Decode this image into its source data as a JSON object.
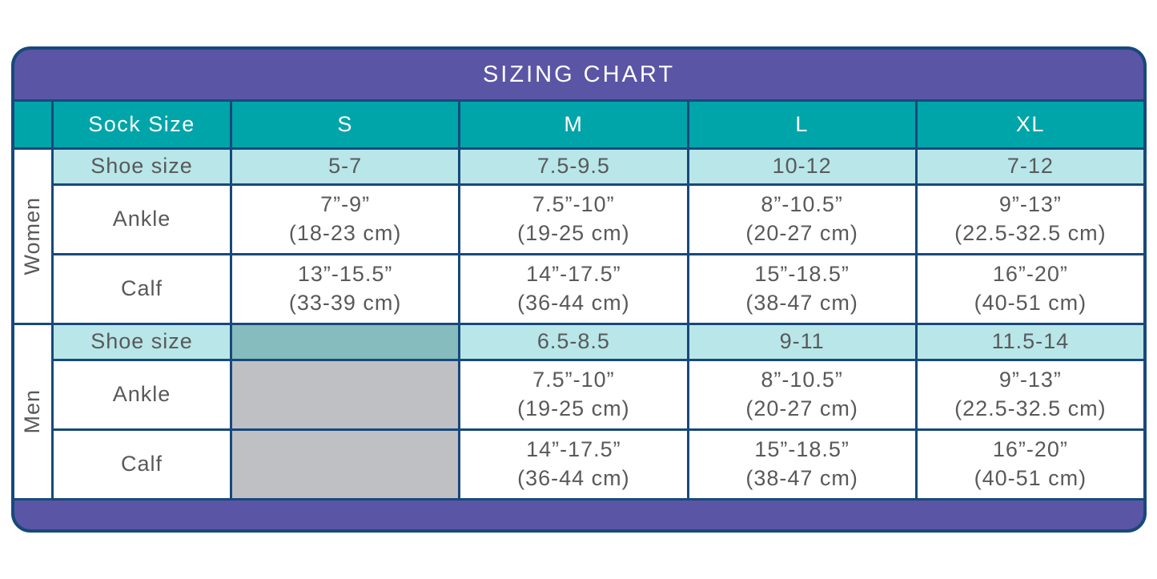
{
  "title": "SIZING CHART",
  "colors": {
    "border_navy": "#17497C",
    "header_purple": "#5B55A5",
    "teal": "#00A5A9",
    "light_teal": "#B9E6E8",
    "muted_teal": "#87BCBF",
    "disabled_gray": "#BFC0C4",
    "text_gray": "#58595B",
    "text_white": "#FFFFFF"
  },
  "chart_data": {
    "type": "table",
    "title": "SIZING CHART",
    "columns": [
      "Sock Size",
      "S",
      "M",
      "L",
      "XL"
    ],
    "sections": [
      {
        "group": "Women",
        "rows": [
          {
            "label": "Shoe size",
            "values": [
              "5-7",
              "7.5-9.5",
              "10-12",
              "7-12"
            ]
          },
          {
            "label": "Ankle",
            "values": [
              "7”-9” (18-23 cm)",
              "7.5”-10” (19-25 cm)",
              "8”-10.5” (20-27 cm)",
              "9”-13” (22.5-32.5 cm)"
            ]
          },
          {
            "label": "Calf",
            "values": [
              "13”-15.5” (33-39 cm)",
              "14”-17.5” (36-44 cm)",
              "15”-18.5” (38-47 cm)",
              "16”-20” (40-51 cm)"
            ]
          }
        ]
      },
      {
        "group": "Men",
        "rows": [
          {
            "label": "Shoe size",
            "values": [
              "",
              "6.5-8.5",
              "9-11",
              "11.5-14"
            ]
          },
          {
            "label": "Ankle",
            "values": [
              "",
              "7.5”-10” (19-25 cm)",
              "8”-10.5” (20-27 cm)",
              "9”-13” (22.5-32.5 cm)"
            ]
          },
          {
            "label": "Calf",
            "values": [
              "",
              "14”-17.5” (36-44 cm)",
              "15”-18.5” (38-47 cm)",
              "16”-20” (40-51 cm)"
            ]
          }
        ]
      }
    ]
  },
  "table": {
    "header": [
      "Sock Size",
      "S",
      "M",
      "L",
      "XL"
    ],
    "sections": [
      {
        "group": "Women",
        "rows": [
          {
            "label": "Shoe size",
            "cells": [
              "5-7",
              "7.5-9.5",
              "10-12",
              "7-12"
            ]
          },
          {
            "label": "Ankle",
            "cells": [
              {
                "line1": "7”-9”",
                "line2": "(18-23 cm)"
              },
              {
                "line1": "7.5”-10”",
                "line2": "(19-25 cm)"
              },
              {
                "line1": "8”-10.5”",
                "line2": "(20-27 cm)"
              },
              {
                "line1": "9”-13”",
                "line2": "(22.5-32.5 cm)"
              }
            ]
          },
          {
            "label": "Calf",
            "cells": [
              {
                "line1": "13”-15.5”",
                "line2": "(33-39 cm)"
              },
              {
                "line1": "14”-17.5”",
                "line2": "(36-44 cm)"
              },
              {
                "line1": "15”-18.5”",
                "line2": "(38-47 cm)"
              },
              {
                "line1": "16”-20”",
                "line2": "(40-51 cm)"
              }
            ]
          }
        ]
      },
      {
        "group": "Men",
        "rows": [
          {
            "label": "Shoe size",
            "cells": [
              "6.5-8.5",
              "9-11",
              "11.5-14"
            ]
          },
          {
            "label": "Ankle",
            "cells": [
              {
                "line1": "7.5”-10”",
                "line2": "(19-25 cm)"
              },
              {
                "line1": "8”-10.5”",
                "line2": "(20-27 cm)"
              },
              {
                "line1": "9”-13”",
                "line2": "(22.5-32.5 cm)"
              }
            ]
          },
          {
            "label": "Calf",
            "cells": [
              {
                "line1": "14”-17.5”",
                "line2": "(36-44 cm)"
              },
              {
                "line1": "15”-18.5”",
                "line2": "(38-47 cm)"
              },
              {
                "line1": "16”-20”",
                "line2": "(40-51 cm)"
              }
            ]
          }
        ]
      }
    ]
  }
}
